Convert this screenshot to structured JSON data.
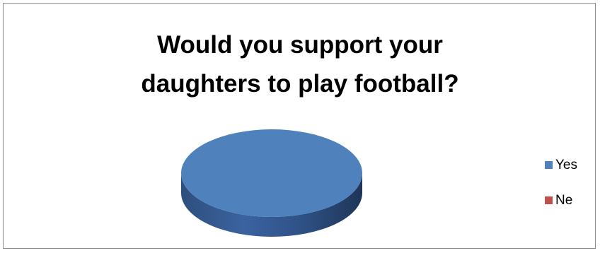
{
  "chart_data": {
    "type": "pie",
    "title_lines": [
      "Would you support your",
      "daughters to play football?"
    ],
    "categories": [
      "Yes",
      "Ne"
    ],
    "values": [
      100,
      0
    ],
    "colors": [
      "#4f81bd",
      "#c0504d"
    ],
    "style": "3d",
    "legend_position": "right"
  }
}
